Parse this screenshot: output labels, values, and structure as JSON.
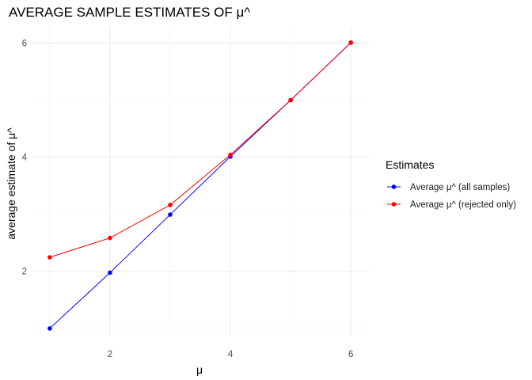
{
  "chart_data": {
    "type": "line",
    "title": "AVERAGE SAMPLE ESTIMATES OF μ^",
    "xlabel": "μ",
    "ylabel": "average estimate of μ^",
    "xlim": [
      0.7,
      6.3
    ],
    "ylim": [
      0.85,
      6.3
    ],
    "x_ticks": [
      2,
      4,
      6
    ],
    "y_ticks": [
      2,
      4,
      6
    ],
    "x_minor": [
      1,
      3,
      5
    ],
    "y_minor": [
      1,
      3,
      5
    ],
    "grid": true,
    "legend_position": "right",
    "legend_title": "Estimates",
    "x": [
      1,
      2,
      3,
      4,
      5,
      6
    ],
    "series": [
      {
        "name": "Average μ^ (all samples)",
        "color": "#0000ff",
        "values": [
          0.99,
          1.97,
          2.99,
          4.01,
          5.0,
          6.01
        ]
      },
      {
        "name": "Average μ^ (rejected only)",
        "color": "#ff0000",
        "values": [
          2.24,
          2.58,
          3.16,
          4.04,
          5.0,
          6.01
        ]
      }
    ]
  }
}
